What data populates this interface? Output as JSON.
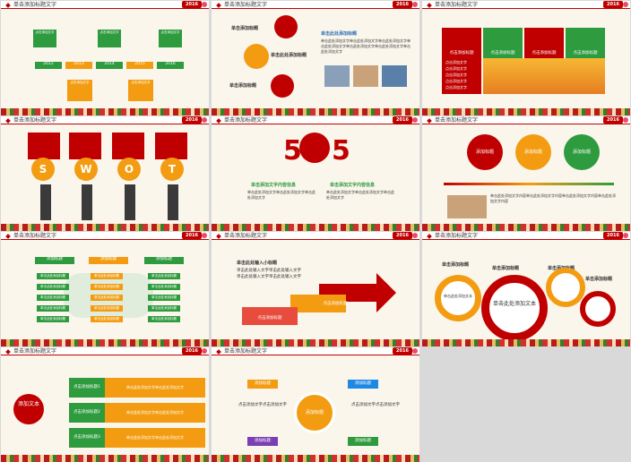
{
  "slide_title": "单击添加标题文字",
  "year_badge": "2016",
  "timeline": {
    "years": [
      "2012",
      "2013",
      "2014",
      "2015",
      "2016"
    ],
    "note": "点击添加文字"
  },
  "strategy": {
    "heading_top": "单击添加标题",
    "heading_mid": "单击此处添加标题",
    "heading_bot": "单击添加标题",
    "right_title": "单击此处添加标题",
    "body": "单击此处添加文字单击此处添加文字单击此处添加文字单击此处添加文字单击此处添加文字单击此处添加文字单击此处添加文字"
  },
  "teams": {
    "label": "点击添加标题",
    "lines": [
      "点击添加文字",
      "点击添加文字",
      "点击添加文字",
      "点击添加文字",
      "点击添加文字"
    ]
  },
  "swot": {
    "letters": [
      "S",
      "W",
      "O",
      "T"
    ],
    "caption": "单击添加文字内容",
    "sub": "添加文字"
  },
  "five": {
    "num": "5",
    "left_title": "单击添加文字内容信息",
    "right_title": "单击添加文字内容信息",
    "body": "单击此处添加文字单击此处添加文字单击此处添加文字"
  },
  "tri": {
    "labels": [
      "添加标题",
      "添加标题",
      "添加标题"
    ],
    "body": "单击此处添加文字内容单击此处添加文字内容单击此处添加文字内容单击此处添加文字内容"
  },
  "world": {
    "headers": [
      "添加标题",
      "添加标题",
      "添加标题"
    ],
    "cell": "单击此处添加标题"
  },
  "arrow": {
    "title": "单击此处输入小标题",
    "lines": [
      "单击此处输入文字单击此处输入文字",
      "单击此处输入文字单击此处输入文字"
    ],
    "step1": "点击添加标题",
    "step2": "点击添加标题"
  },
  "gears": {
    "labels": [
      "单击添加标题",
      "单击添加标题",
      "单击添加标题",
      "单击添加标题"
    ],
    "center": "单击此处添加文本",
    "small": "单击此处添加文本",
    "lines": "单击此处添加文字单击此处添加文字"
  },
  "list": {
    "badge": "添加文本",
    "items": [
      "点击添加标题1",
      "点击添加标题2",
      "点击添加标题3"
    ],
    "desc": "单击此处添加文字单击此处添加文字"
  },
  "hub": {
    "center": "添加标题",
    "tags": [
      "添加标题",
      "添加标题",
      "添加标题",
      "添加标题"
    ],
    "left_text": "点击添加文字点击添加文字",
    "right_text": "点击添加文字点击添加文字"
  },
  "colors": {
    "red": "#c00000",
    "green": "#2e9b3e",
    "orange": "#f39c12"
  }
}
